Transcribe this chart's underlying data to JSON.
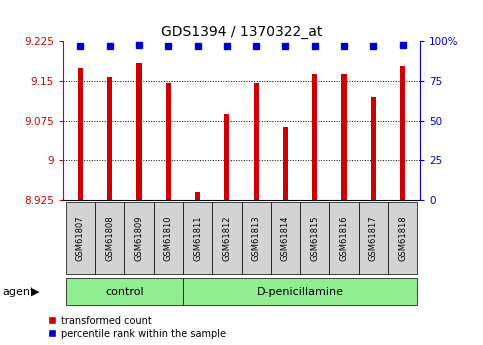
{
  "title": "GDS1394 / 1370322_at",
  "samples": [
    "GSM61807",
    "GSM61808",
    "GSM61809",
    "GSM61810",
    "GSM61811",
    "GSM61812",
    "GSM61813",
    "GSM61814",
    "GSM61815",
    "GSM61816",
    "GSM61817",
    "GSM61818"
  ],
  "transformed_count": [
    9.175,
    9.158,
    9.185,
    9.147,
    8.94,
    9.088,
    9.147,
    9.063,
    9.163,
    9.163,
    9.12,
    9.178
  ],
  "percentile_rank": [
    97,
    97,
    98,
    97,
    97,
    97,
    97,
    97,
    97,
    97,
    97,
    98
  ],
  "bar_color": "#cc0000",
  "dot_color": "#0000cc",
  "ylim_left": [
    8.925,
    9.225
  ],
  "ylim_right": [
    0,
    100
  ],
  "yticks_left": [
    8.925,
    9.0,
    9.075,
    9.15,
    9.225
  ],
  "ytick_labels_left": [
    "8.925",
    "9",
    "9.075",
    "9.15",
    "9.225"
  ],
  "yticks_right": [
    0,
    25,
    50,
    75,
    100
  ],
  "ytick_labels_right": [
    "0",
    "25",
    "50",
    "75",
    "100%"
  ],
  "n_control": 4,
  "n_treatment": 8,
  "control_label": "control",
  "treatment_label": "D-penicillamine",
  "agent_label": "agent",
  "legend_bar_label": "transformed count",
  "legend_dot_label": "percentile rank within the sample",
  "background_color": "#ffffff",
  "tick_label_color_left": "#cc0000",
  "tick_label_color_right": "#0000cc",
  "group_bg_color": "#90ee90",
  "sample_bg_color": "#d3d3d3",
  "bar_width": 0.18
}
